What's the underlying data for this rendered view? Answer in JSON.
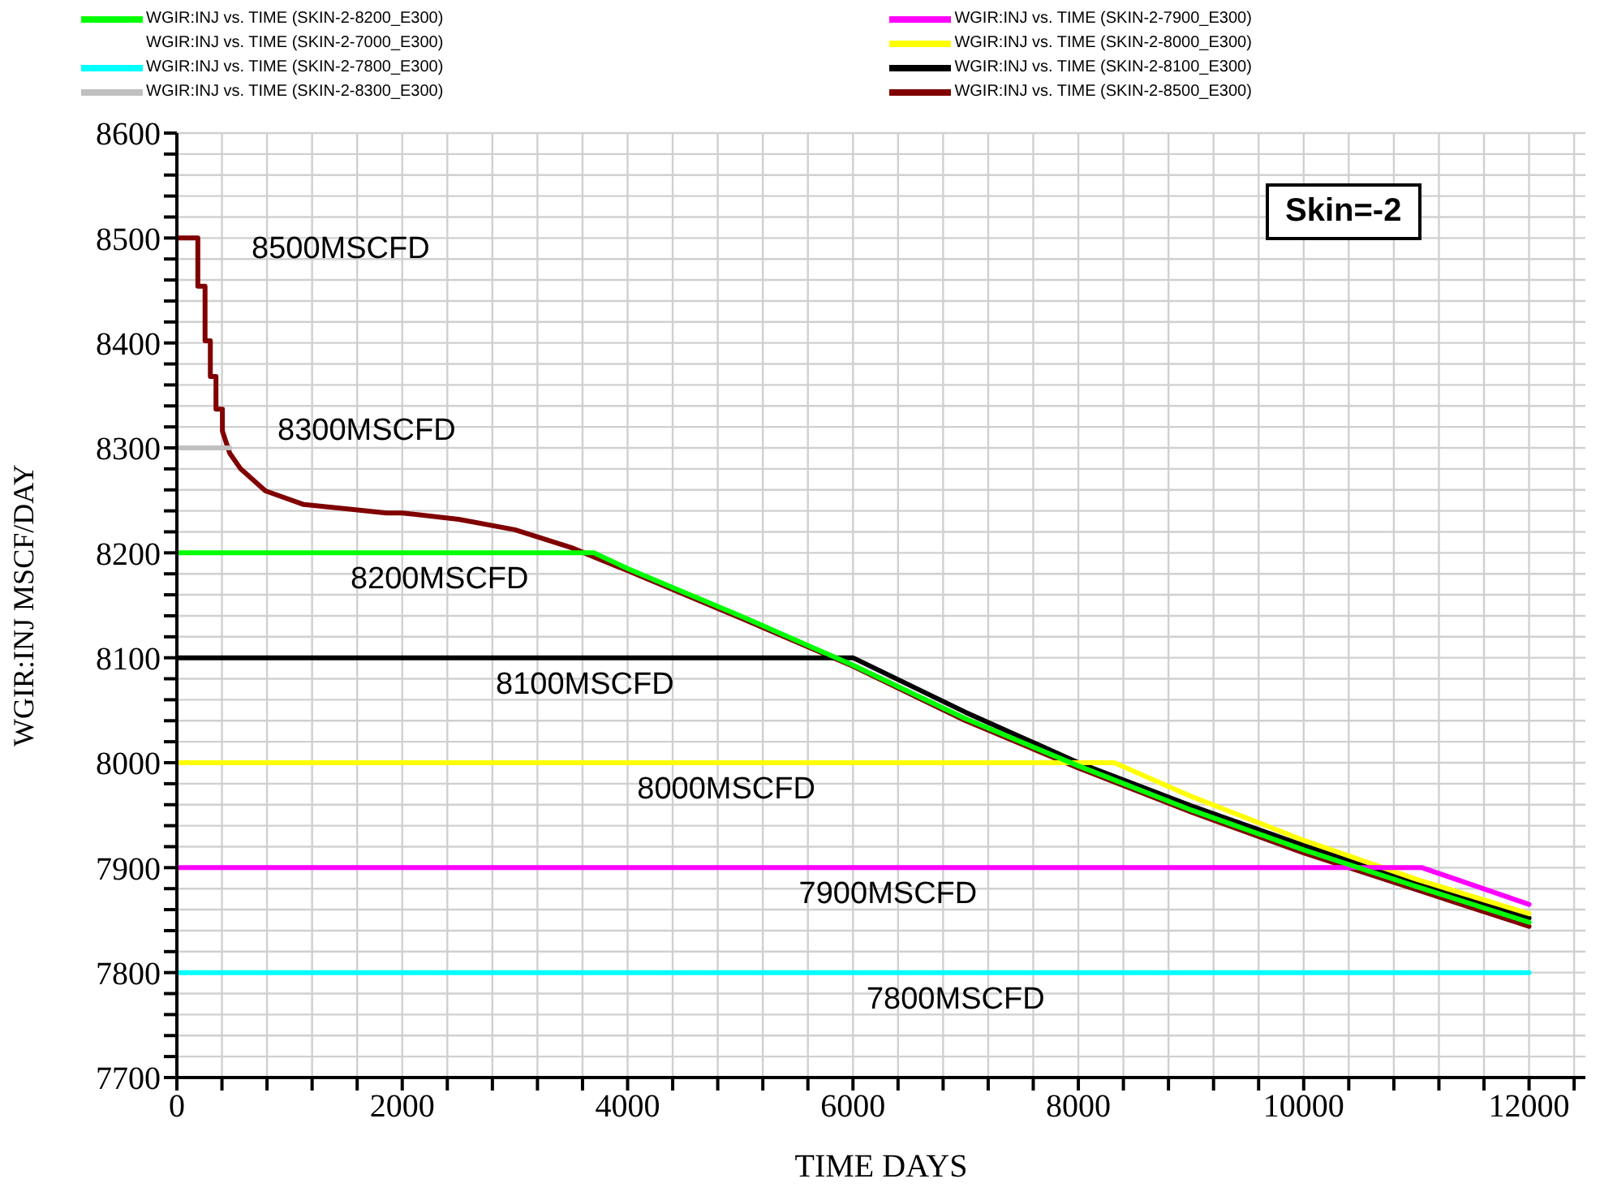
{
  "chart_data": {
    "type": "line",
    "xlabel": "TIME  DAYS",
    "ylabel": "WGIR:INJ  MSCF/DAY",
    "xlim": [
      0,
      12500
    ],
    "ylim": [
      7700,
      8600
    ],
    "xticks": [
      0,
      {
        "value": 400,
        "label": null
      },
      {
        "value": 800,
        "label": null
      },
      {
        "value": 1200,
        "label": null
      },
      {
        "value": 1600,
        "label": null
      },
      2000,
      {
        "value": 2400,
        "label": null
      },
      {
        "value": 2800,
        "label": null
      },
      {
        "value": 3200,
        "label": null
      },
      {
        "value": 3600,
        "label": null
      },
      4000,
      {
        "value": 4400,
        "label": null
      },
      {
        "value": 4800,
        "label": null
      },
      {
        "value": 5200,
        "label": null
      },
      {
        "value": 5600,
        "label": null
      },
      6000,
      {
        "value": 6400,
        "label": null
      },
      {
        "value": 6800,
        "label": null
      },
      {
        "value": 7200,
        "label": null
      },
      {
        "value": 7600,
        "label": null
      },
      8000,
      {
        "value": 8400,
        "label": null
      },
      {
        "value": 8800,
        "label": null
      },
      {
        "value": 9200,
        "label": null
      },
      {
        "value": 9600,
        "label": null
      },
      10000,
      {
        "value": 10400,
        "label": null
      },
      {
        "value": 10800,
        "label": null
      },
      {
        "value": 11200,
        "label": null
      },
      {
        "value": 11600,
        "label": null
      },
      12000,
      {
        "value": 12400,
        "label": null
      }
    ],
    "yticks": [
      7700,
      {
        "value": 7720,
        "label": null
      },
      {
        "value": 7740,
        "label": null
      },
      {
        "value": 7760,
        "label": null
      },
      {
        "value": 7780,
        "label": null
      },
      7800,
      {
        "value": 7820,
        "label": null
      },
      {
        "value": 7840,
        "label": null
      },
      {
        "value": 7860,
        "label": null
      },
      {
        "value": 7880,
        "label": null
      },
      7900,
      {
        "value": 7920,
        "label": null
      },
      {
        "value": 7940,
        "label": null
      },
      {
        "value": 7960,
        "label": null
      },
      {
        "value": 7980,
        "label": null
      },
      8000,
      {
        "value": 8020,
        "label": null
      },
      {
        "value": 8040,
        "label": null
      },
      {
        "value": 8060,
        "label": null
      },
      {
        "value": 8080,
        "label": null
      },
      8100,
      {
        "value": 8120,
        "label": null
      },
      {
        "value": 8140,
        "label": null
      },
      {
        "value": 8160,
        "label": null
      },
      {
        "value": 8180,
        "label": null
      },
      8200,
      {
        "value": 8220,
        "label": null
      },
      {
        "value": 8240,
        "label": null
      },
      {
        "value": 8260,
        "label": null
      },
      {
        "value": 8280,
        "label": null
      },
      8300,
      {
        "value": 8320,
        "label": null
      },
      {
        "value": 8340,
        "label": null
      },
      {
        "value": 8360,
        "label": null
      },
      {
        "value": 8380,
        "label": null
      },
      8400,
      {
        "value": 8420,
        "label": null
      },
      {
        "value": 8440,
        "label": null
      },
      {
        "value": 8460,
        "label": null
      },
      {
        "value": 8480,
        "label": null
      },
      8500,
      {
        "value": 8520,
        "label": null
      },
      {
        "value": 8540,
        "label": null
      },
      {
        "value": 8560,
        "label": null
      },
      {
        "value": 8580,
        "label": null
      },
      8600
    ],
    "grid": true,
    "legend": "top",
    "marker": "none",
    "line_style": "solid",
    "series": [
      {
        "name": "WGIR:INJ vs. TIME (SKIN-2-8200_E300)",
        "color": "#00ff00",
        "x": [
          0,
          3700,
          4000,
          5000,
          6000,
          7000,
          8000,
          9000,
          10000,
          11000,
          12000
        ],
        "values": [
          8200,
          8200,
          8185,
          8140,
          8093,
          8042,
          7997,
          7955,
          7917,
          7882,
          7848
        ]
      },
      {
        "name": "WGIR:INJ vs. TIME (SKIN-2-7000_E300)"
      },
      {
        "name": "WGIR:INJ vs. TIME (SKIN-2-7800_E300)",
        "color": "#00ffff",
        "x": [
          0,
          12000
        ],
        "values": [
          7800,
          7800
        ]
      },
      {
        "name": "WGIR:INJ vs. TIME (SKIN-2-8300_E300)",
        "color": "#c0c0c0",
        "x": [
          0,
          470
        ],
        "values": [
          8300,
          8300
        ]
      },
      {
        "name": "WGIR:INJ vs. TIME (SKIN-2-7900_E300)",
        "color": "#ff00ff",
        "x": [
          0,
          11050,
          12000
        ],
        "values": [
          7900,
          7900,
          7865
        ]
      },
      {
        "name": "WGIR:INJ vs. TIME (SKIN-2-8000_E300)",
        "color": "#ffff00",
        "x": [
          0,
          8320,
          9000,
          10000,
          11000,
          12000
        ],
        "values": [
          8000,
          8000,
          7968,
          7926,
          7889,
          7856
        ]
      },
      {
        "name": "WGIR:INJ vs. TIME (SKIN-2-8100_E300)",
        "color": "#000000",
        "x": [
          0,
          6000,
          7000,
          8000,
          9000,
          10000,
          11000,
          12000
        ],
        "values": [
          8100,
          8100,
          8048,
          8000,
          7959,
          7921,
          7886,
          7852
        ]
      },
      {
        "name": "WGIR:INJ vs. TIME (SKIN-2-8500_E300)",
        "color": "#800000",
        "x": [
          0,
          186,
          186,
          250,
          250,
          297,
          297,
          347,
          347,
          404,
          404,
          469,
          566,
          786,
          1127,
          1500,
          1860,
          2000,
          2500,
          3000,
          3500,
          4000,
          5000,
          6000,
          7000,
          8000,
          9000,
          10000,
          11000,
          12000
        ],
        "values": [
          8500,
          8500,
          8454,
          8454,
          8402,
          8402,
          8368,
          8368,
          8337,
          8337,
          8316,
          8295,
          8280,
          8259,
          8246,
          8242,
          8238,
          8238,
          8232,
          8222,
          8205,
          8183,
          8138,
          8092,
          8040,
          7995,
          7953,
          7914,
          7879,
          7844
        ]
      }
    ],
    "annotations": [
      "Skin=-2",
      "8500MSCFD",
      "8300MSCFD",
      {
        "text": "8200MSCFD",
        "x": 1540,
        "y": 8200
      },
      {
        "text": "8100MSCFD",
        "x": 2830,
        "y": 8100
      },
      {
        "text": "8000MSCFD",
        "x": 4085,
        "y": 8000
      },
      {
        "text": "7900MSCFD",
        "x": 5520,
        "y": 7900
      },
      {
        "text": "7800MSCFD",
        "x": 6120,
        "y": 7800
      }
    ]
  }
}
